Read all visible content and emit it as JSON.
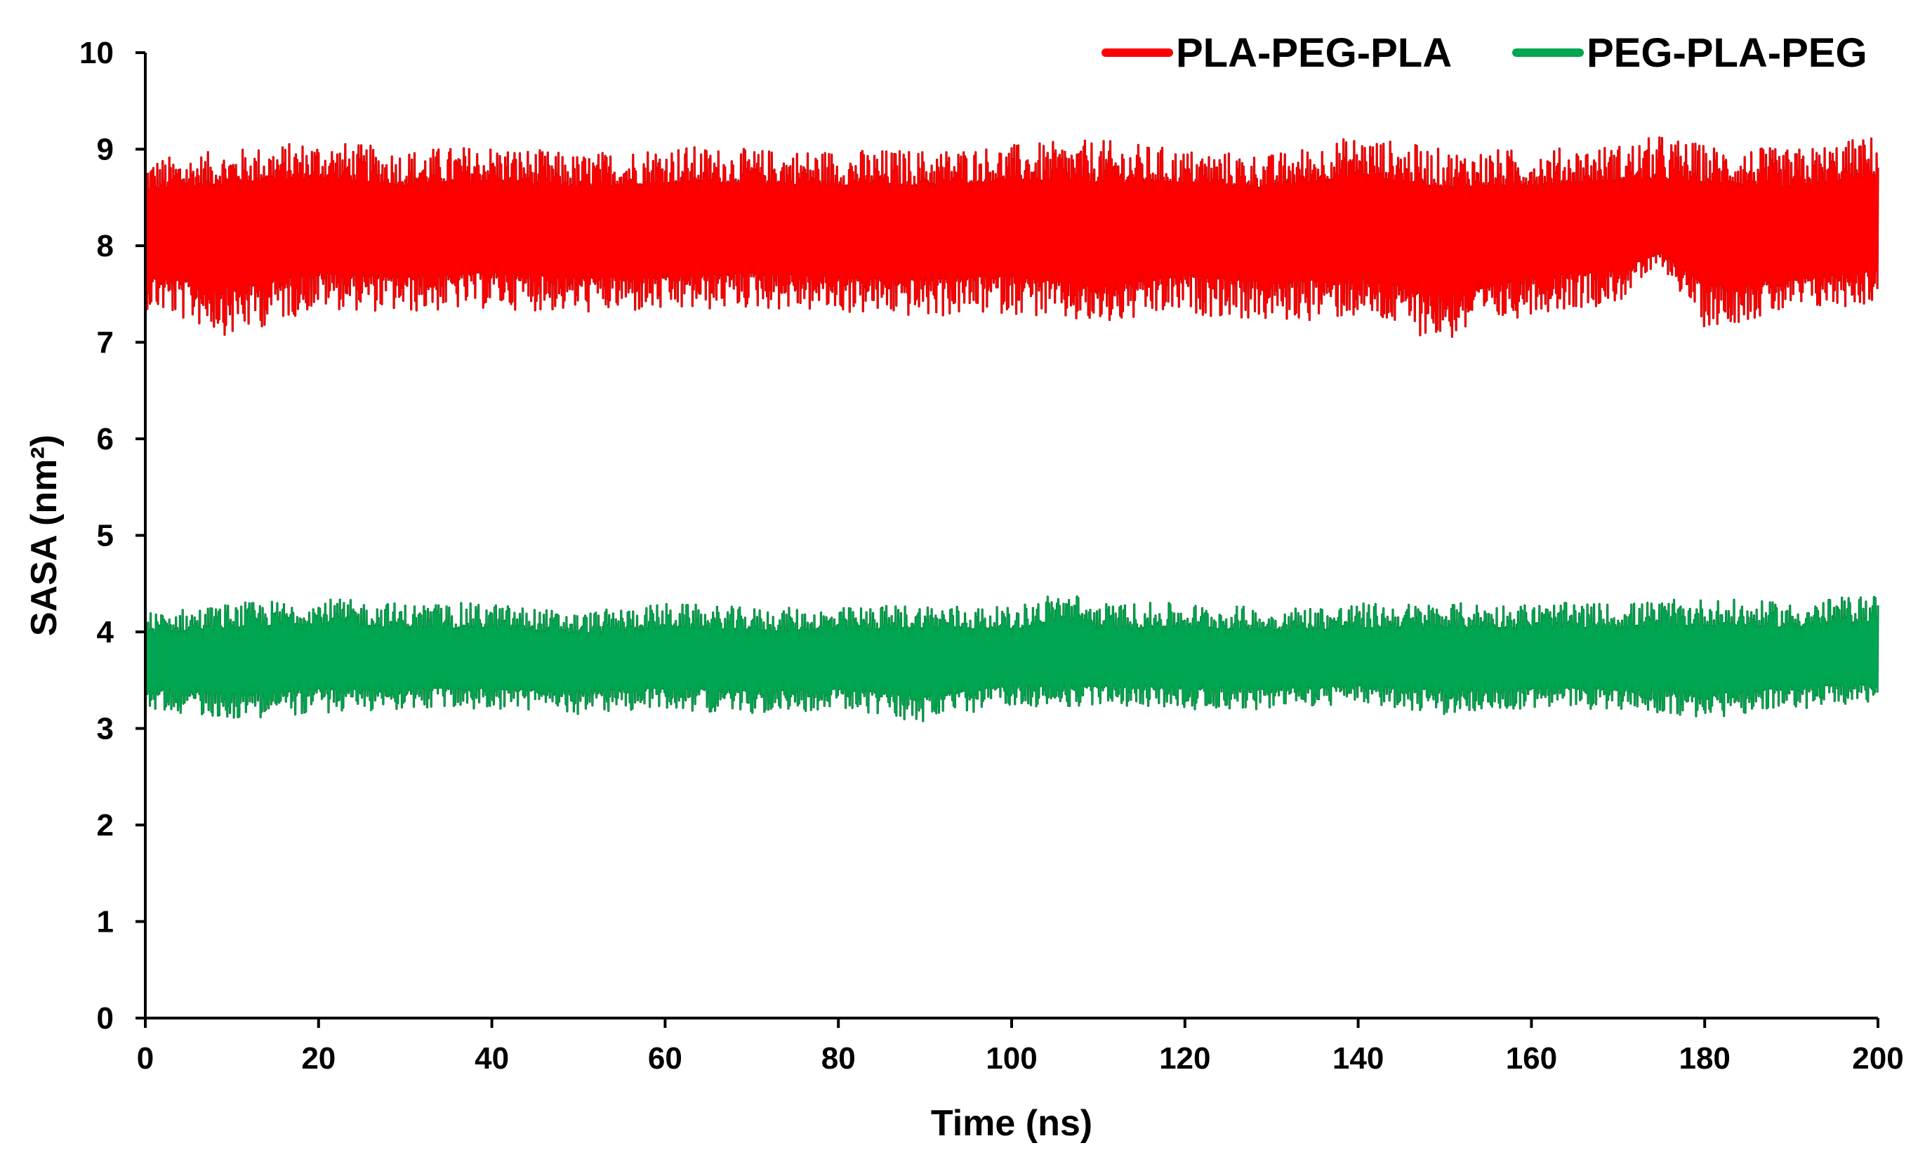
{
  "chart_data": {
    "type": "line",
    "title": "",
    "xlabel": "Time (ns)",
    "ylabel": "SASA (nm²)",
    "xlim": [
      0,
      200
    ],
    "ylim": [
      0,
      10
    ],
    "x_ticks": [
      0,
      20,
      40,
      60,
      80,
      100,
      120,
      140,
      160,
      180,
      200
    ],
    "y_ticks": [
      0,
      1,
      2,
      3,
      4,
      5,
      6,
      7,
      8,
      9,
      10
    ],
    "grid": false,
    "legend_position": "top-right",
    "series": [
      {
        "name": "PLA-PEG-PLA",
        "color": "#ff0000",
        "edge_color": "#c00000",
        "x": [
          0,
          10,
          20,
          30,
          40,
          50,
          60,
          70,
          80,
          90,
          100,
          110,
          120,
          130,
          140,
          150,
          160,
          170,
          175,
          180,
          190,
          200
        ],
        "mean": [
          8.15,
          8.2,
          8.2,
          8.15,
          8.2,
          8.15,
          8.15,
          8.2,
          8.15,
          8.15,
          8.2,
          8.1,
          8.2,
          8.15,
          8.2,
          8.1,
          8.15,
          8.2,
          8.1,
          8.15,
          8.1,
          8.2
        ],
        "upper": [
          8.9,
          9.0,
          9.1,
          9.0,
          9.05,
          8.95,
          9.05,
          9.0,
          9.0,
          9.0,
          9.05,
          9.1,
          9.0,
          8.95,
          9.15,
          9.0,
          9.0,
          9.05,
          9.15,
          9.05,
          9.0,
          9.15
        ],
        "lower": [
          7.35,
          7.05,
          7.35,
          7.3,
          7.35,
          7.3,
          7.3,
          7.35,
          7.3,
          7.25,
          7.3,
          7.15,
          7.3,
          7.2,
          7.25,
          7.0,
          7.3,
          7.4,
          7.8,
          7.15,
          7.3,
          7.4
        ]
      },
      {
        "name": "PEG-PLA-PEG",
        "color": "#00a651",
        "edge_color": "#007a33",
        "x": [
          0,
          10,
          20,
          30,
          40,
          50,
          60,
          70,
          80,
          90,
          100,
          106,
          110,
          120,
          130,
          140,
          150,
          160,
          170,
          180,
          190,
          200
        ],
        "mean": [
          3.7,
          3.7,
          3.75,
          3.7,
          3.7,
          3.7,
          3.72,
          3.7,
          3.7,
          3.7,
          3.72,
          3.72,
          3.7,
          3.72,
          3.7,
          3.7,
          3.72,
          3.7,
          3.72,
          3.7,
          3.72,
          3.75
        ],
        "upper": [
          4.2,
          4.3,
          4.35,
          4.3,
          4.3,
          4.2,
          4.3,
          4.25,
          4.25,
          4.3,
          4.25,
          4.45,
          4.3,
          4.3,
          4.25,
          4.3,
          4.3,
          4.3,
          4.3,
          4.35,
          4.3,
          4.4
        ],
        "lower": [
          3.2,
          3.1,
          3.15,
          3.2,
          3.2,
          3.15,
          3.2,
          3.15,
          3.2,
          3.05,
          3.25,
          3.2,
          3.25,
          3.2,
          3.2,
          3.25,
          3.15,
          3.2,
          3.2,
          3.1,
          3.2,
          3.25
        ]
      }
    ]
  }
}
